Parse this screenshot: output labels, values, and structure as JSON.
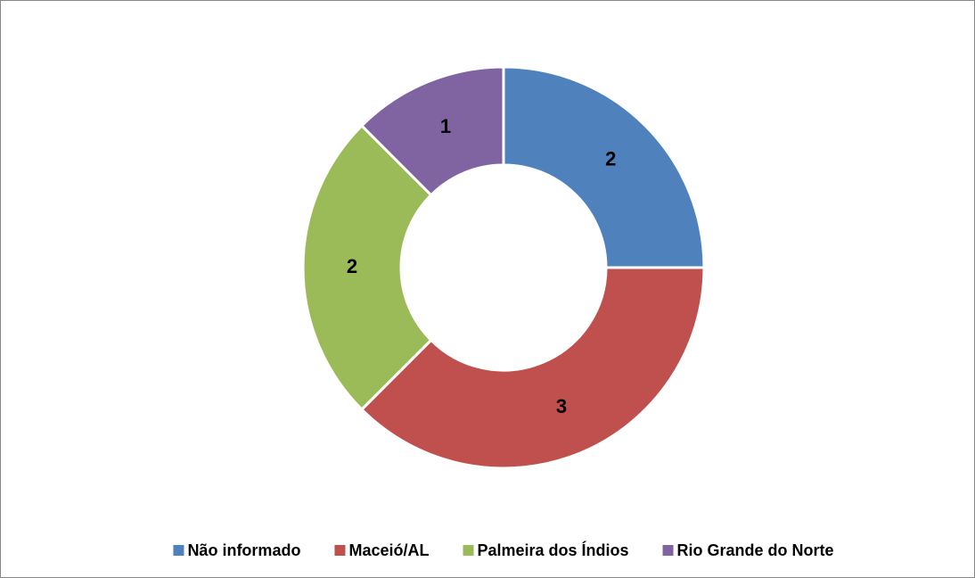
{
  "chart_data": {
    "type": "donut",
    "categories": [
      "Não informado",
      "Maceió/AL",
      "Palmeira dos Índios",
      "Rio Grande do Norte"
    ],
    "values": [
      2,
      3,
      2,
      1
    ],
    "colors": [
      "#4f81bd",
      "#c0504d",
      "#9bbb59",
      "#8064a2"
    ],
    "legend": "bottom"
  }
}
